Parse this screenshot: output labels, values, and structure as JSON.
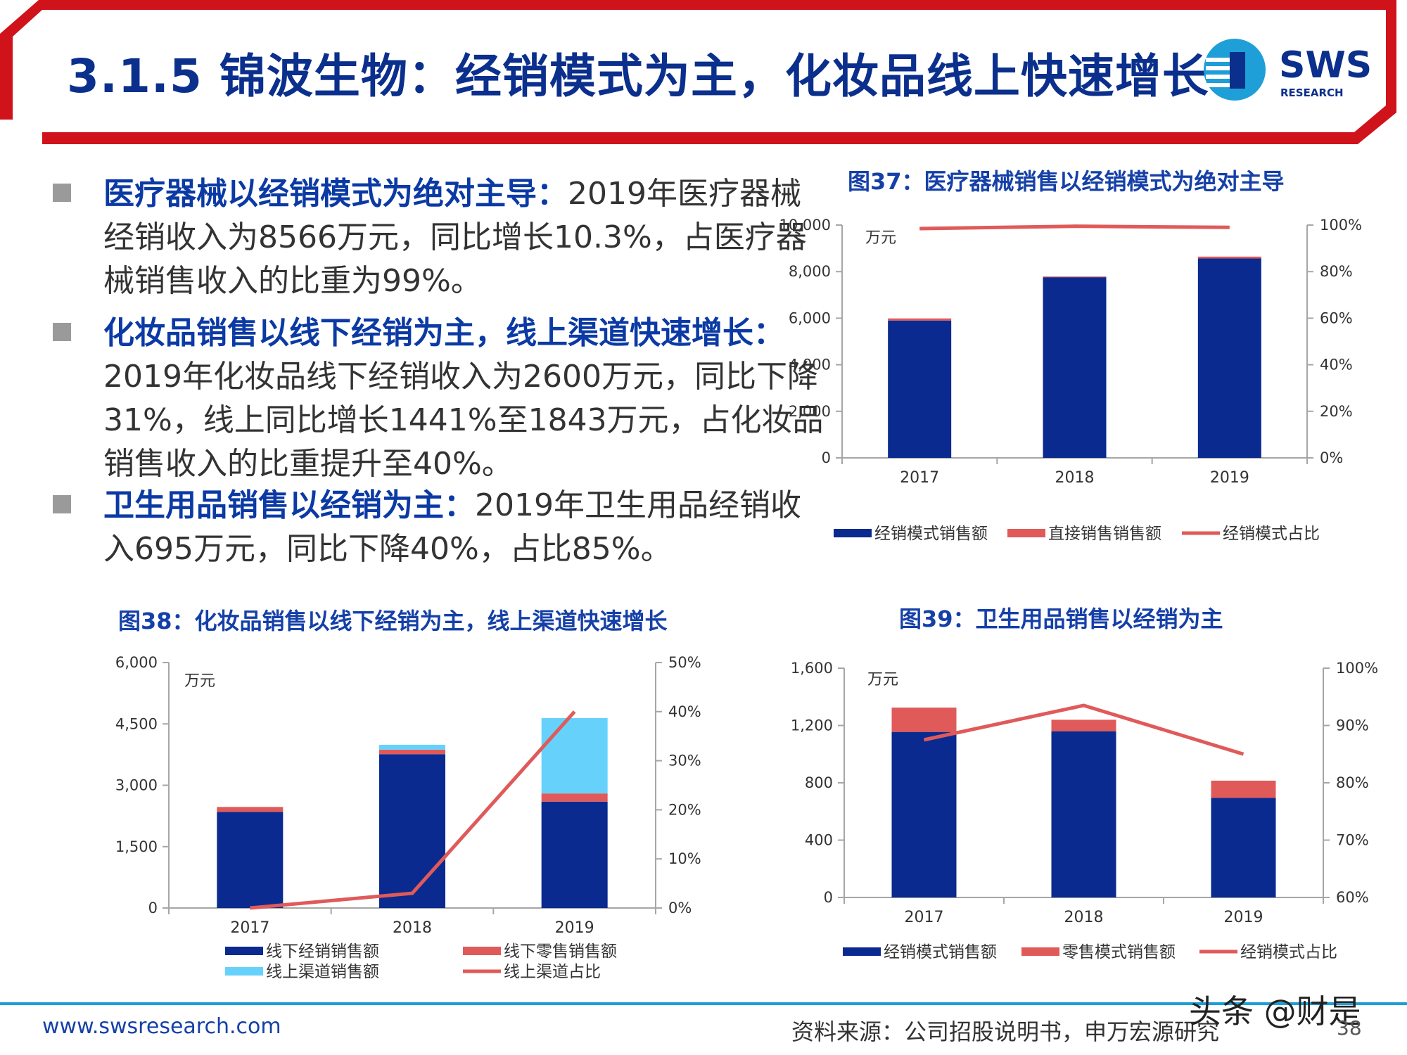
{
  "slide": {
    "title": "3.1.5 锦波生物：经销模式为主，化妆品线上快速增长",
    "logo_text": "SWS",
    "logo_subtext": "RESEARCH",
    "website": "www.swsresearch.com",
    "source": "资料来源：公司招股说明书，申万宏源研究",
    "watermark": "头条 @财是",
    "page_number": "38",
    "colors": {
      "title_blue": "#0b2f8c",
      "accent_red": "#d0121b",
      "navy": "#0a2a8f",
      "coral": "#e05a5a",
      "sky": "#66d2fb"
    }
  },
  "bullets": [
    {
      "head": "医疗器械以经销模式为绝对主导：",
      "text": "2019年医疗器械经销收入为8566万元，同比增长10.3%，占医疗器械销售收入的比重为99%。"
    },
    {
      "head": "化妆品销售以线下经销为主，线上渠道快速增长：",
      "text": "2019年化妆品线下经销收入为2600万元，同比下降31%，线上同比增长1441%至1843万元，占化妆品销售收入的比重提升至40%。"
    },
    {
      "head": "卫生用品销售以经销为主：",
      "text": "2019年卫生用品经销收入695万元，同比下降40%，占比85%。"
    }
  ],
  "chart_data": [
    {
      "id": "fig37",
      "type": "bar",
      "stacked": true,
      "title": "图37：医疗器械销售以经销模式为绝对主导",
      "unit_label": "万元",
      "categories": [
        "2017",
        "2018",
        "2019"
      ],
      "ylim": [
        0,
        10000
      ],
      "yticks": [
        "0",
        "2,000",
        "4,000",
        "6,000",
        "8,000",
        "10,000"
      ],
      "y2lim": [
        0,
        100
      ],
      "y2ticks": [
        "0%",
        "20%",
        "40%",
        "60%",
        "80%",
        "100%"
      ],
      "series": [
        {
          "name": "经销模式销售额",
          "kind": "bar",
          "axis": "left",
          "color": "#0a2a8f",
          "values": [
            5900,
            7760,
            8566
          ]
        },
        {
          "name": "直接销售销售额",
          "kind": "bar",
          "axis": "left",
          "color": "#e05a5a",
          "values": [
            90,
            30,
            80
          ]
        },
        {
          "name": "经销模式占比",
          "kind": "line",
          "axis": "right",
          "color": "#e05a5a",
          "values": [
            98.5,
            99.5,
            99
          ]
        }
      ],
      "legend_position": "bottom"
    },
    {
      "id": "fig38",
      "type": "bar",
      "stacked": true,
      "title": "图38：化妆品销售以线下经销为主，线上渠道快速增长",
      "unit_label": "万元",
      "categories": [
        "2017",
        "2018",
        "2019"
      ],
      "ylim": [
        0,
        6000
      ],
      "yticks": [
        "0",
        "1,500",
        "3,000",
        "4,500",
        "6,000"
      ],
      "y2lim": [
        0,
        50
      ],
      "y2ticks": [
        "0%",
        "10%",
        "20%",
        "30%",
        "40%",
        "50%"
      ],
      "series": [
        {
          "name": "线下经销销售额",
          "kind": "bar",
          "axis": "left",
          "color": "#0a2a8f",
          "values": [
            2350,
            3760,
            2600
          ]
        },
        {
          "name": "线下零售销售额",
          "kind": "bar",
          "axis": "left",
          "color": "#e05a5a",
          "values": [
            120,
            110,
            200
          ]
        },
        {
          "name": "线上渠道销售额",
          "kind": "bar",
          "axis": "left",
          "color": "#66d2fb",
          "values": [
            0,
            120,
            1843
          ]
        },
        {
          "name": "线上渠道占比",
          "kind": "line",
          "axis": "right",
          "color": "#e05a5a",
          "values": [
            0,
            3,
            40
          ]
        }
      ],
      "legend_position": "bottom"
    },
    {
      "id": "fig39",
      "type": "bar",
      "stacked": true,
      "title": "图39：卫生用品销售以经销为主",
      "unit_label": "万元",
      "categories": [
        "2017",
        "2018",
        "2019"
      ],
      "ylim": [
        0,
        1600
      ],
      "yticks": [
        "0",
        "400",
        "800",
        "1,200",
        "1,600"
      ],
      "y2lim": [
        60,
        100
      ],
      "y2ticks": [
        "60%",
        "70%",
        "80%",
        "90%",
        "100%"
      ],
      "series": [
        {
          "name": "经销模式销售额",
          "kind": "bar",
          "axis": "left",
          "color": "#0a2a8f",
          "values": [
            1155,
            1160,
            695
          ]
        },
        {
          "name": "零售模式销售额",
          "kind": "bar",
          "axis": "left",
          "color": "#e05a5a",
          "values": [
            170,
            80,
            120
          ]
        },
        {
          "name": "经销模式占比",
          "kind": "line",
          "axis": "right",
          "color": "#e05a5a",
          "values": [
            87.5,
            93.5,
            85
          ]
        }
      ],
      "legend_position": "bottom"
    }
  ]
}
